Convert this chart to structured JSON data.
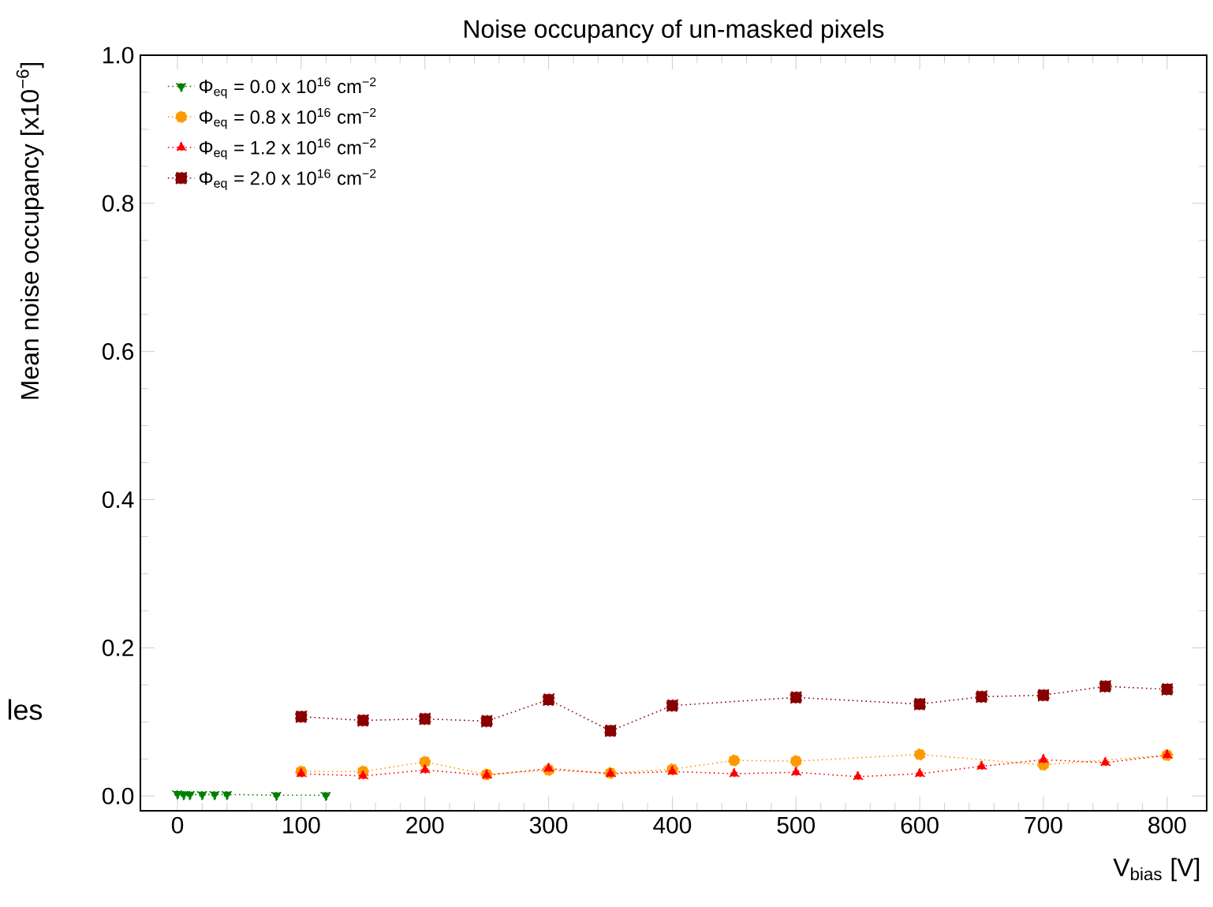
{
  "chart_data": {
    "type": "line",
    "title": "Noise occupancy of un-masked pixels",
    "xlabel": "V$_{bias}$ [V]",
    "ylabel": "Mean noise occupancy [x10$^{−6}$]",
    "annotations": [
      "les"
    ],
    "xlim": [
      -30,
      832
    ],
    "xticks": [
      0,
      100,
      200,
      300,
      400,
      500,
      600,
      700,
      800
    ],
    "ylim": [
      -0.02,
      1.0
    ],
    "yticks": [
      {
        "value": 0,
        "label": "0.0"
      },
      0.2,
      0.4,
      0.6,
      0.8,
      {
        "value": 1,
        "label": "1.0"
      }
    ],
    "grid": false,
    "legend": "top left",
    "line_style": "dotted",
    "series": [
      {
        "name": "Φ$_{eq}$ = 0.0 x 10$^{16}$ cm$^{−2}$",
        "color": "#008000",
        "marker": "triangle down",
        "x": [
          0,
          5,
          10,
          20,
          30,
          40,
          80,
          120
        ],
        "values": [
          0.003,
          0.002,
          0.002,
          0.002,
          0.002,
          0.002,
          0.001,
          0.001
        ]
      },
      {
        "name": "Φ$_{eq}$ = 0.8 x 10$^{16}$ cm$^{−2}$",
        "color": "#ff9900",
        "marker": "circle",
        "x": [
          100,
          150,
          200,
          250,
          300,
          350,
          400,
          450,
          500,
          600,
          700,
          800
        ],
        "values": [
          0.033,
          0.033,
          0.046,
          0.029,
          0.035,
          0.031,
          0.036,
          0.048,
          0.047,
          0.056,
          0.042,
          0.055
        ]
      },
      {
        "name": "Φ$_{eq}$ = 1.2 x 10$^{16}$ cm$^{−2}$",
        "color": "#ff0000",
        "marker": "triangle",
        "x": [
          100,
          150,
          200,
          250,
          300,
          350,
          400,
          450,
          500,
          550,
          600,
          650,
          700,
          750,
          800
        ],
        "values": [
          0.03,
          0.027,
          0.035,
          0.028,
          0.037,
          0.03,
          0.033,
          0.03,
          0.032,
          0.026,
          0.03,
          0.04,
          0.049,
          0.045,
          0.055
        ]
      },
      {
        "name": "Φ$_{eq}$ = 2.0 x 10$^{16}$ cm$^{−2}$",
        "color": "#880000",
        "marker": "square",
        "x": [
          100,
          150,
          200,
          250,
          300,
          350,
          400,
          500,
          600,
          650,
          700,
          750,
          800
        ],
        "values": [
          0.107,
          0.102,
          0.104,
          0.101,
          0.13,
          0.088,
          0.122,
          0.133,
          0.124,
          0.134,
          0.136,
          0.148,
          0.144
        ]
      }
    ]
  }
}
